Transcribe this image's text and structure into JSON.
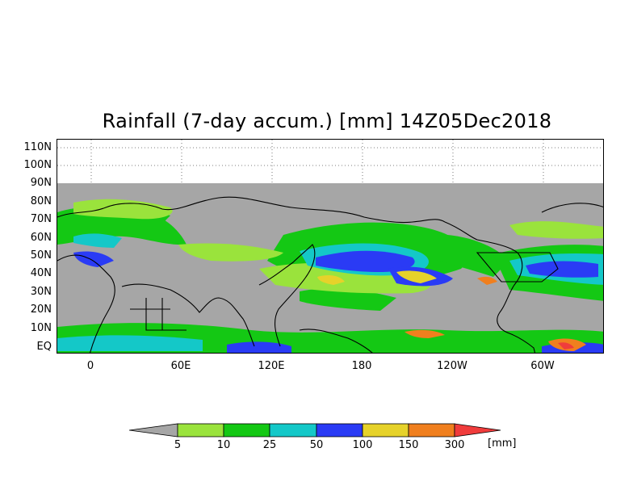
{
  "title": "Rainfall (7-day accum.) [mm] 14Z05Dec2018",
  "map": {
    "lat_labels": [
      "110N",
      "100N",
      "90N",
      "80N",
      "70N",
      "60N",
      "50N",
      "40N",
      "30N",
      "20N",
      "10N",
      "EQ"
    ],
    "lon_labels": [
      "0",
      "60E",
      "120E",
      "180",
      "120W",
      "60W"
    ],
    "colors": {
      "background_no_data": "#a6a6a6",
      "coast": "#000000"
    }
  },
  "colorbar": {
    "ticks": [
      "5",
      "10",
      "25",
      "50",
      "100",
      "150",
      "300"
    ],
    "unit": "[mm]",
    "colors": [
      "#a6a6a6",
      "#9ae33c",
      "#14c814",
      "#14c8c8",
      "#2a3bf5",
      "#e6d22a",
      "#f07f1e",
      "#f03c3c"
    ]
  }
}
